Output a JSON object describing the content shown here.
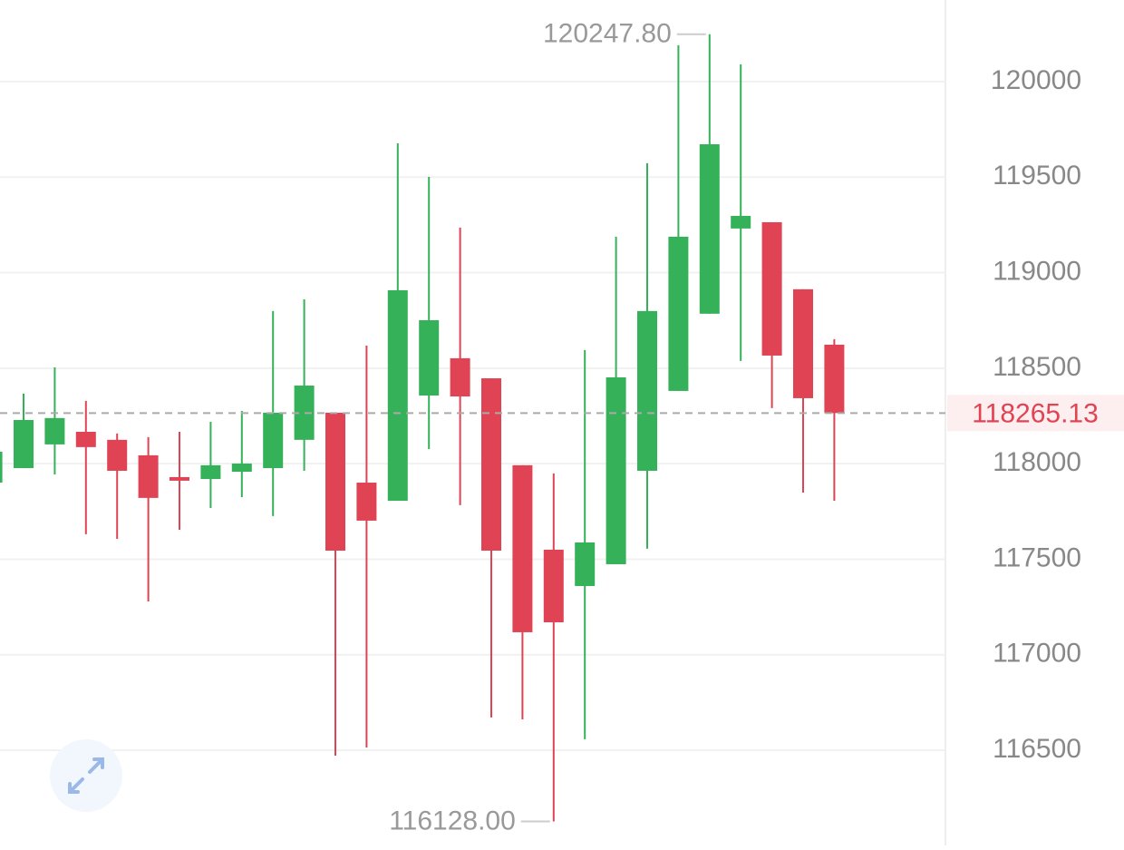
{
  "chart_data": {
    "type": "candlestick",
    "open": [
      117901,
      117977,
      118101,
      118167,
      118125,
      118044,
      117930,
      117920,
      117958,
      117977,
      118125,
      118267,
      117901,
      117806,
      118357,
      118552,
      118447,
      117992,
      117550,
      117360,
      117474,
      117963,
      118381,
      118785,
      119231,
      119264,
      118913,
      118623
    ],
    "high": [
      118100,
      118367,
      118504,
      118329,
      118158,
      118139,
      118167,
      118219,
      118276,
      118799,
      118860,
      118267,
      118618,
      119677,
      119501,
      119236,
      118447,
      117992,
      117949,
      118595,
      119188,
      119573,
      120190,
      120247.8,
      120090,
      119264,
      118913,
      118652
    ],
    "low": [
      117880,
      117977,
      117944,
      117631,
      117607,
      117279,
      117654,
      117768,
      117825,
      117726,
      117963,
      116472,
      116515,
      117806,
      118077,
      117783,
      116672,
      116662,
      116128,
      116558,
      117474,
      117555,
      118381,
      118785,
      118538,
      118291,
      117849,
      117806
    ],
    "close": [
      118063,
      118229,
      118239,
      118087,
      117963,
      117821,
      117911,
      117992,
      118001,
      118267,
      118409,
      117545,
      117702,
      118908,
      118751,
      118352,
      117545,
      117118,
      117170,
      117588,
      118452,
      118799,
      119188,
      119672,
      119297,
      118566,
      118343,
      118265.13
    ],
    "up_color": "#35b15a",
    "down_color": "#e04454",
    "ylim": [
      116002,
      120427
    ],
    "yticks": [
      116500,
      117000,
      117500,
      118000,
      118500,
      119000,
      119500,
      120000
    ],
    "grid": true,
    "max_annotation": {
      "value": 120247.8,
      "label": "120247.80"
    },
    "min_annotation": {
      "value": 116128,
      "label": "116128.00"
    },
    "last_price": {
      "value": 118265.13,
      "label": "118265.13"
    }
  }
}
